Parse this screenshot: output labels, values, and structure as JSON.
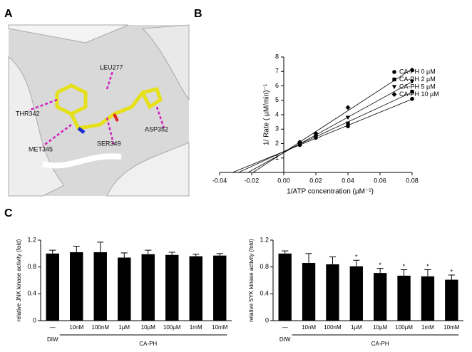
{
  "panels": [
    "A",
    "B",
    "C"
  ],
  "structure": {
    "labels": [
      "LEU277",
      "THR342",
      "MET345",
      "SER349",
      "ASP352"
    ]
  },
  "chart_data": [
    {
      "type": "scatter",
      "fit": "linear",
      "x_label": "1/ATP concentration (µM⁻¹)",
      "y_label": "1/ Rate ( µM/min)⁻¹",
      "x": [
        0.01,
        0.02,
        0.04,
        0.08
      ],
      "series": [
        {
          "name": "CA-PH 0 µM",
          "marker": "circle",
          "color": "#000000",
          "values": [
            1.9,
            2.4,
            3.2,
            5.1
          ]
        },
        {
          "name": "CA-PH 2 µM",
          "marker": "square",
          "color": "#000000",
          "values": [
            2.0,
            2.5,
            3.4,
            5.6
          ]
        },
        {
          "name": "CA-PH 5 µM",
          "marker": "triangle-down",
          "color": "#000000",
          "values": [
            2.0,
            2.6,
            3.8,
            6.3
          ]
        },
        {
          "name": "CA-PH 10 µM",
          "marker": "diamond",
          "color": "#000000",
          "values": [
            2.1,
            2.7,
            4.5,
            7.1
          ]
        }
      ],
      "xlim": [
        -0.04,
        0.08
      ],
      "xticks": [
        -0.04,
        -0.02,
        {
          "value": 0,
          "label": "0.00"
        },
        0.02,
        0.04,
        0.06,
        0.08
      ],
      "ylim": [
        0,
        8
      ],
      "yticks": [
        1,
        2,
        3,
        4,
        5,
        6,
        7,
        8
      ],
      "legend": "upper right"
    },
    {
      "type": "bar",
      "y_label": "relative JNK kinase activity (fold)",
      "color": "#000000",
      "categories": [
        "—",
        "10nM",
        "100nM",
        "1µM",
        "10µM",
        "100µM",
        "1mM",
        "10mM"
      ],
      "values": [
        1.0,
        1.02,
        1.02,
        0.94,
        0.99,
        0.98,
        0.96,
        0.97
      ],
      "errors": [
        0.05,
        0.09,
        0.15,
        0.07,
        0.06,
        0.04,
        0.03,
        0.03
      ],
      "annotations": [
        null,
        null,
        null,
        null,
        null,
        null,
        null,
        null
      ],
      "group_labels": [
        "DIW",
        "CA-PH"
      ],
      "ylim": [
        0,
        1.2
      ],
      "yticks": [
        0,
        0.4,
        0.8,
        1.2
      ]
    },
    {
      "type": "bar",
      "y_label": "relative SYK kinase activity (fold)",
      "color": "#000000",
      "categories": [
        "—",
        "10nM",
        "100nM",
        "1µM",
        "10µM",
        "100µM",
        "1mM",
        "10mM"
      ],
      "values": [
        1.0,
        0.86,
        0.84,
        0.81,
        0.71,
        0.67,
        0.66,
        0.61
      ],
      "errors": [
        0.04,
        0.14,
        0.11,
        0.09,
        0.07,
        0.09,
        0.1,
        0.07
      ],
      "annotations": [
        null,
        null,
        null,
        "*",
        "*",
        "*",
        "*",
        "*"
      ],
      "group_labels": [
        "DIW",
        "CA-PH"
      ],
      "ylim": [
        0,
        1.2
      ],
      "yticks": [
        0,
        0.4,
        0.8,
        1.2
      ]
    }
  ]
}
